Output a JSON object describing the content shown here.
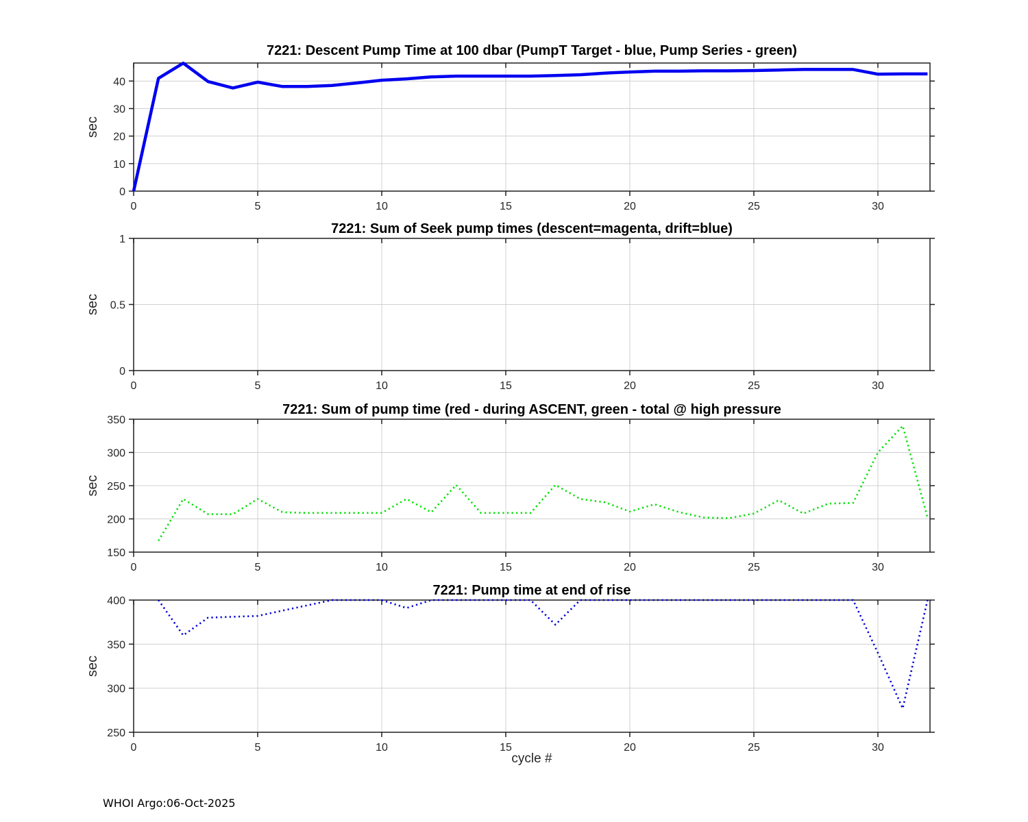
{
  "page": {
    "footer": "WHOI Argo:06-Oct-2025",
    "xlabel": "cycle #"
  },
  "chart_data": [
    {
      "type": "line",
      "title": "7221: Descent Pump Time at 100 dbar (PumpT Target - blue, Pump Series - green)",
      "ylabel": "sec",
      "xlim": [
        0,
        32.1
      ],
      "ylim": [
        0,
        46.55
      ],
      "xticks": [
        0,
        5,
        10,
        15,
        20,
        25,
        30
      ],
      "yticks": [
        0,
        10,
        20,
        30,
        40
      ],
      "grid": true,
      "legend_position": "none",
      "series": [
        {
          "name": "PumpT Target",
          "color": "#0000f0",
          "style": "solid",
          "width": 4.5,
          "x": [
            0,
            1,
            2,
            3,
            4,
            5,
            6,
            7,
            8,
            9,
            10,
            11,
            12,
            13,
            14,
            15,
            16,
            17,
            18,
            19,
            20,
            21,
            22,
            23,
            24,
            25,
            26,
            27,
            28,
            29,
            30,
            31,
            32
          ],
          "y": [
            0,
            41,
            46.5,
            39.8,
            37.5,
            39.6,
            38,
            38,
            38.4,
            39.3,
            40.3,
            40.8,
            41.5,
            41.8,
            41.8,
            41.8,
            41.8,
            42,
            42.3,
            42.9,
            43.3,
            43.6,
            43.6,
            43.7,
            43.7,
            43.8,
            44,
            44.2,
            44.2,
            44.2,
            42.5,
            42.6,
            42.6
          ]
        }
      ]
    },
    {
      "type": "line",
      "title": "7221: Sum of Seek pump times (descent=magenta, drift=blue)",
      "ylabel": "sec",
      "xlim": [
        0,
        32.1
      ],
      "ylim": [
        0,
        1
      ],
      "xticks": [
        0,
        5,
        10,
        15,
        20,
        25,
        30
      ],
      "yticks": [
        0,
        0.5,
        1
      ],
      "grid": true,
      "legend_position": "none",
      "series": []
    },
    {
      "type": "line",
      "title": "7221: Sum of pump time (red - during ASCENT, green - total @ high pressure",
      "ylabel": "sec",
      "xlim": [
        0,
        32.1
      ],
      "ylim": [
        150,
        350
      ],
      "xticks": [
        0,
        5,
        10,
        15,
        20,
        25,
        30
      ],
      "yticks": [
        150,
        200,
        250,
        300,
        350
      ],
      "grid": true,
      "legend_position": "none",
      "series": [
        {
          "name": "total @ high pressure",
          "color": "#00e000",
          "style": "dotted",
          "width": 2.6,
          "x": [
            1,
            2,
            3,
            4,
            5,
            6,
            7,
            8,
            9,
            10,
            11,
            12,
            13,
            14,
            15,
            16,
            17,
            18,
            19,
            20,
            21,
            22,
            23,
            24,
            25,
            26,
            27,
            28,
            29,
            30,
            31,
            32
          ],
          "y": [
            167,
            230,
            207,
            207,
            230,
            210,
            209,
            209,
            209,
            209,
            230,
            210,
            251,
            209,
            209,
            209,
            251,
            230,
            225,
            211,
            222,
            210,
            202,
            201,
            208,
            228,
            208,
            223,
            224,
            300,
            340,
            202
          ]
        }
      ]
    },
    {
      "type": "line",
      "title": "7221: Pump time at end of rise",
      "ylabel": "sec",
      "xlim": [
        0,
        32.1
      ],
      "ylim": [
        250,
        400
      ],
      "xticks": [
        0,
        5,
        10,
        15,
        20,
        25,
        30
      ],
      "yticks": [
        250,
        300,
        350,
        400
      ],
      "grid": true,
      "legend_position": "none",
      "series": [
        {
          "name": "pump time at end of rise",
          "color": "#0000d8",
          "style": "dotted",
          "width": 2.6,
          "x": [
            1,
            2,
            3,
            4,
            5,
            6,
            7,
            8,
            9,
            10,
            11,
            12,
            13,
            14,
            15,
            16,
            17,
            18,
            19,
            20,
            21,
            22,
            23,
            24,
            25,
            26,
            27,
            28,
            29,
            30,
            31,
            32
          ],
          "y": [
            400,
            360,
            380,
            381,
            382,
            388,
            394,
            400,
            400,
            400,
            391,
            400,
            400,
            400,
            400,
            400,
            372,
            400,
            400,
            400,
            400,
            400,
            400,
            400,
            400,
            400,
            400,
            400,
            400,
            340,
            277,
            400
          ]
        }
      ]
    }
  ]
}
